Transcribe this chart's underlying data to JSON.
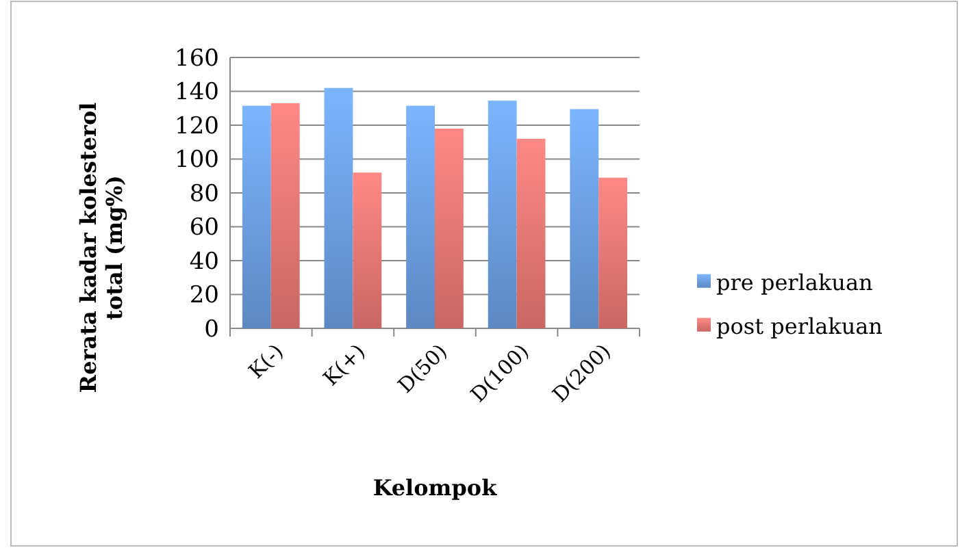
{
  "chart_data": {
    "type": "bar",
    "xlabel": "Kelompok",
    "ylabel": "Rerata kadar kolesterol total (mg%)",
    "categories": [
      "K(-)",
      "K(+)",
      "D(50)",
      "D(100)",
      "D(200)"
    ],
    "series": [
      {
        "name": "pre perlakuan",
        "color": "#6fa3e8",
        "values": [
          131.5,
          142,
          131.5,
          134.5,
          129.5
        ]
      },
      {
        "name": "post perlakuan",
        "color": "#f07b78",
        "values": [
          133,
          92,
          118,
          112,
          89
        ]
      }
    ],
    "ylim": [
      0,
      160
    ],
    "yticks": [
      0,
      20,
      40,
      60,
      80,
      100,
      120,
      140,
      160
    ],
    "grid": "y",
    "legend": "right"
  }
}
